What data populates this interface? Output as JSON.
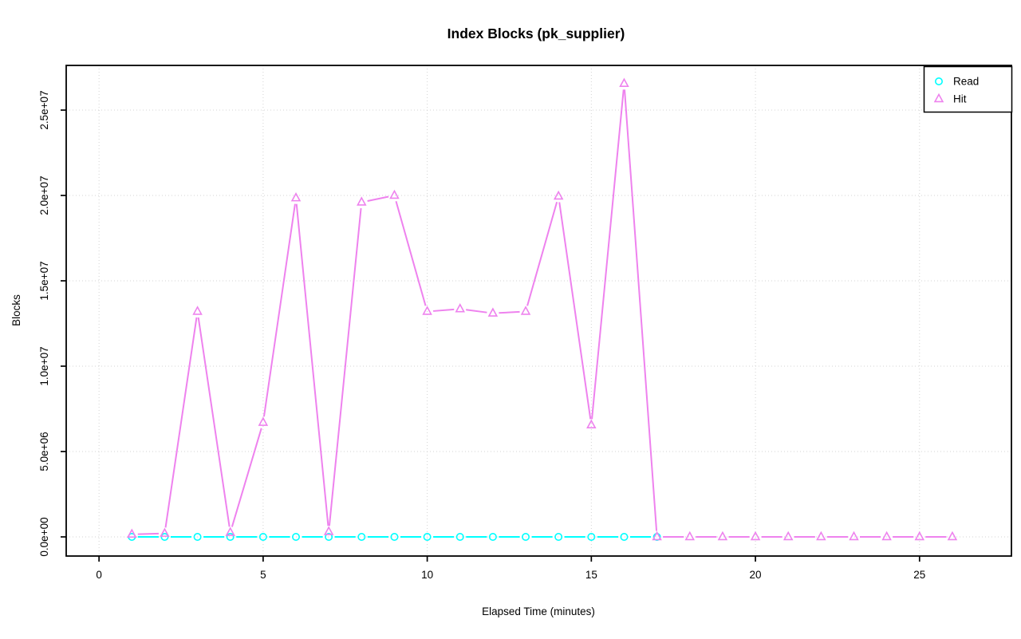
{
  "chart_data": {
    "type": "line",
    "title": "Index Blocks (pk_supplier)",
    "xlabel": "Elapsed Time (minutes)",
    "ylabel": "Blocks",
    "x_ticks": [
      0,
      5,
      10,
      15,
      20,
      25
    ],
    "y_ticks": [
      0,
      5000000,
      10000000,
      15000000,
      20000000,
      25000000
    ],
    "y_tick_labels": [
      "0.0e+00",
      "5.0e+06",
      "1.0e+07",
      "1.5e+07",
      "2.0e+07",
      "2.5e+07"
    ],
    "x_range": [
      -1,
      27.8
    ],
    "y_range": [
      -1121500,
      27617000
    ],
    "grid": "dotted",
    "legend_position": "top-right",
    "series": [
      {
        "name": "Read",
        "marker": "circle",
        "color": "#00ffff",
        "x": [
          1,
          2,
          3,
          4,
          5,
          6,
          7,
          8,
          9,
          10,
          11,
          12,
          13,
          14,
          15,
          16,
          17
        ],
        "values": [
          0,
          0,
          0,
          0,
          0,
          0,
          0,
          0,
          0,
          0,
          0,
          0,
          0,
          0,
          0,
          0,
          0
        ]
      },
      {
        "name": "Hit",
        "marker": "triangle",
        "color": "#ee82ee",
        "x": [
          1,
          2,
          3,
          4,
          5,
          6,
          7,
          8,
          9,
          10,
          11,
          12,
          13,
          14,
          15,
          16,
          17,
          18,
          19,
          20,
          21,
          22,
          23,
          24,
          25,
          26
        ],
        "values": [
          150000,
          200000,
          13200000,
          250000,
          6700000,
          19850000,
          300000,
          19600000,
          20000000,
          13200000,
          13350000,
          13100000,
          13200000,
          19950000,
          6550000,
          26550000,
          0,
          0,
          0,
          0,
          0,
          0,
          0,
          0,
          0,
          0
        ]
      }
    ]
  },
  "colors": {
    "background": "#ffffff",
    "grid": "#d3d3d3",
    "axis": "#000000",
    "read_series": "#00ffff",
    "hit_series": "#ee82ee"
  }
}
